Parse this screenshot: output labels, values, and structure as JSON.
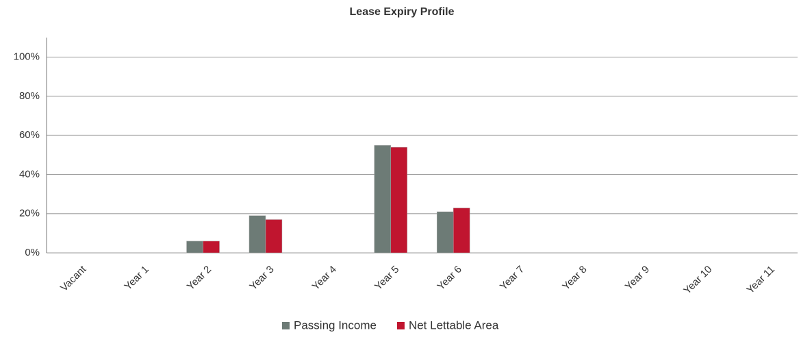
{
  "chart_data": {
    "type": "bar",
    "title": "Lease Expiry Profile",
    "categories": [
      "Vacant",
      "Year 1",
      "Year 2",
      "Year 3",
      "Year 4",
      "Year 5",
      "Year 6",
      "Year 7",
      "Year 8",
      "Year 9",
      "Year 10",
      "Year 11"
    ],
    "series": [
      {
        "name": "Passing Income",
        "color": "#6d7b76",
        "values": [
          0,
          0,
          6,
          19,
          0,
          55,
          21,
          0,
          0,
          0,
          0,
          0
        ]
      },
      {
        "name": "Net Lettable Area",
        "color": "#c0152f",
        "values": [
          0,
          0,
          6,
          17,
          0,
          54,
          23,
          0,
          0,
          0,
          0,
          0
        ]
      }
    ],
    "ylim": [
      0,
      110
    ],
    "yticks": [
      {
        "value": 0,
        "label": "0%"
      },
      {
        "value": 20,
        "label": "20%"
      },
      {
        "value": 40,
        "label": "40%"
      },
      {
        "value": 60,
        "label": "60%"
      },
      {
        "value": 80,
        "label": "80%"
      },
      {
        "value": 100,
        "label": "100%"
      }
    ],
    "grid": true,
    "legend": "bottom"
  }
}
